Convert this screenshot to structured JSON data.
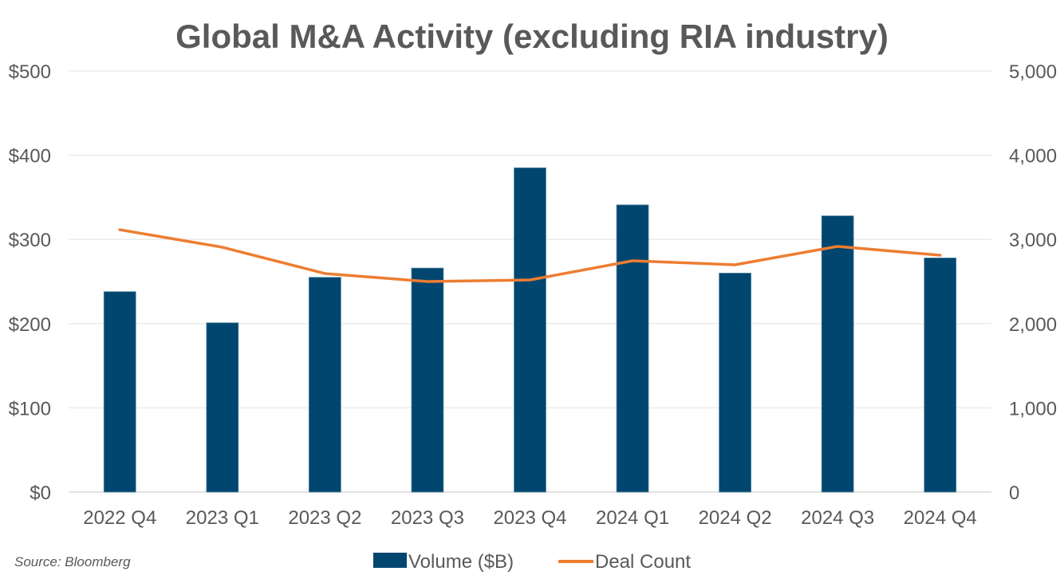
{
  "chart_data": {
    "type": "bar",
    "title": "Global M&A Activity (excluding RIA industry)",
    "xlabel": "",
    "ylabel": "",
    "categories": [
      "2022 Q4",
      "2023 Q1",
      "2023 Q2",
      "2023 Q3",
      "2023 Q4",
      "2024 Q1",
      "2024 Q2",
      "2024 Q3",
      "2024 Q4"
    ],
    "series": [
      {
        "name": "Volume ($B)",
        "type": "bar",
        "axis": "left",
        "color": "#00466E",
        "values": [
          238,
          201,
          255,
          266,
          385,
          341,
          260,
          328,
          278
        ]
      },
      {
        "name": "Deal Count",
        "type": "line",
        "axis": "right",
        "color": "#ED7D31",
        "values": [
          3115,
          2907,
          2595,
          2500,
          2519,
          2746,
          2699,
          2917,
          2812
        ]
      }
    ],
    "left_axis": {
      "ylim": [
        0,
        500
      ],
      "ticks": [
        0,
        100,
        200,
        300,
        400,
        500
      ],
      "tick_labels": [
        "$0",
        "$100",
        "$200",
        "$300",
        "$400",
        "$500"
      ]
    },
    "right_axis": {
      "ylim": [
        0,
        5000
      ],
      "ticks": [
        0,
        1000,
        2000,
        3000,
        4000,
        5000
      ],
      "tick_labels": [
        "0",
        "1,000",
        "2,000",
        "3,000",
        "4,000",
        "5,000"
      ]
    },
    "grid": true,
    "legend_position": "bottom-center",
    "source_note": "Source: Bloomberg",
    "gridline_color": "#EBEBEB",
    "text_color": "#595959"
  }
}
